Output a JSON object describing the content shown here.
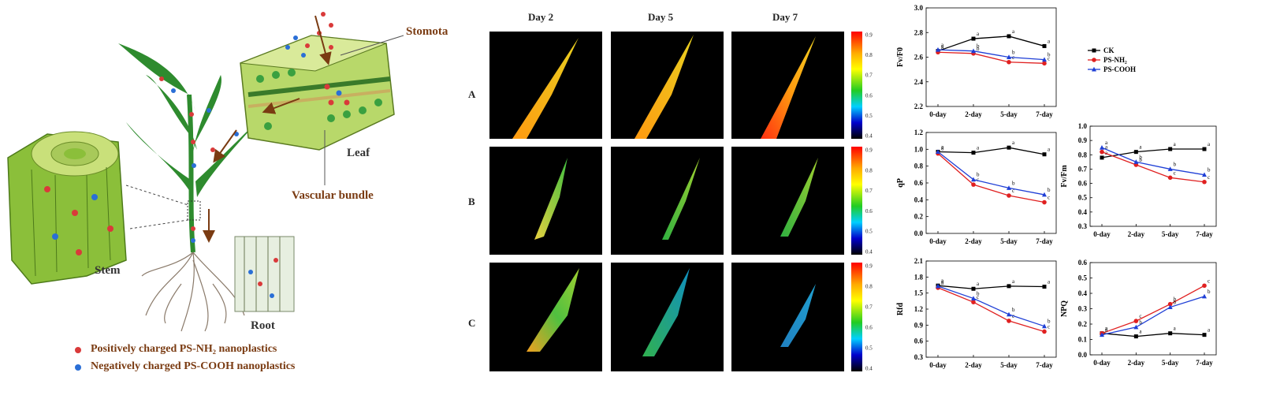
{
  "diagram": {
    "labels": {
      "stomata": "Stomota",
      "leaf": "Leaf",
      "vascular": "Vascular bundle",
      "stem": "Stem",
      "root": "Root"
    },
    "legend": [
      {
        "text": "Positively charged PS-NH₂ nanoplastics",
        "color": "#d93a3a"
      },
      {
        "text": "Negatively charged PS-COOH nanoplastics",
        "color": "#2a6fd6"
      }
    ]
  },
  "heatmaps": {
    "columns": [
      "Day 2",
      "Day 5",
      "Day 7"
    ],
    "rows": [
      "A",
      "B",
      "C"
    ],
    "colorbar_ticks": [
      "0.9",
      "0.8",
      "0.7",
      "0.6",
      "0.5",
      "0.4"
    ]
  },
  "chart_data": [
    {
      "type": "line",
      "ylabel": "Fv/F0",
      "categories": [
        "0-day",
        "2-day",
        "5-day",
        "7-day"
      ],
      "ylim": [
        2.2,
        3.0
      ],
      "yticks": [
        "2.2",
        "2.4",
        "2.6",
        "2.8",
        "3.0"
      ],
      "legend": "right",
      "series": [
        {
          "name": "CK",
          "color": "#000000",
          "marker": "square",
          "values": [
            2.65,
            2.75,
            2.77,
            2.69
          ],
          "letters": [
            "a",
            "a",
            "a",
            "a"
          ]
        },
        {
          "name": "PS-NH₂",
          "color": "#e02020",
          "marker": "circle",
          "values": [
            2.64,
            2.63,
            2.56,
            2.55
          ],
          "letters": [
            "a",
            "b",
            "c",
            "c"
          ]
        },
        {
          "name": "PS-COOH",
          "color": "#1f3fd6",
          "marker": "triangle",
          "values": [
            2.66,
            2.65,
            2.6,
            2.58
          ],
          "letters": [
            "a",
            "b",
            "b",
            "b"
          ]
        }
      ]
    },
    {
      "type": "line",
      "ylabel": "qP",
      "categories": [
        "0-day",
        "2-day",
        "5-day",
        "7-day"
      ],
      "ylim": [
        0.0,
        1.2
      ],
      "yticks": [
        "0.0",
        "0.2",
        "0.4",
        "0.6",
        "0.8",
        "1.0",
        "1.2"
      ],
      "series": [
        {
          "name": "CK",
          "color": "#000000",
          "marker": "square",
          "values": [
            0.97,
            0.96,
            1.02,
            0.94
          ],
          "letters": [
            "a",
            "a",
            "a",
            "a"
          ]
        },
        {
          "name": "PS-NH₂",
          "color": "#e02020",
          "marker": "circle",
          "values": [
            0.95,
            0.58,
            0.45,
            0.37
          ],
          "letters": [
            "a",
            "c",
            "c",
            "c"
          ]
        },
        {
          "name": "PS-COOH",
          "color": "#1f3fd6",
          "marker": "triangle",
          "values": [
            0.97,
            0.64,
            0.54,
            0.46
          ],
          "letters": [
            "a",
            "b",
            "b",
            "b"
          ]
        }
      ]
    },
    {
      "type": "line",
      "ylabel": "Fv/Fm",
      "categories": [
        "0-day",
        "2-day",
        "5-day",
        "7-day"
      ],
      "ylim": [
        0.3,
        1.0
      ],
      "yticks": [
        "0.3",
        "0.4",
        "0.5",
        "0.6",
        "0.7",
        "0.8",
        "0.9",
        "1.0"
      ],
      "series": [
        {
          "name": "CK",
          "color": "#000000",
          "marker": "square",
          "values": [
            0.78,
            0.82,
            0.84,
            0.84
          ],
          "letters": [
            "a",
            "a",
            "a",
            "a"
          ]
        },
        {
          "name": "PS-NH₂",
          "color": "#e02020",
          "marker": "circle",
          "values": [
            0.82,
            0.73,
            0.64,
            0.61
          ],
          "letters": [
            "a",
            "b",
            "c",
            "c"
          ]
        },
        {
          "name": "PS-COOH",
          "color": "#1f3fd6",
          "marker": "triangle",
          "values": [
            0.85,
            0.75,
            0.7,
            0.66
          ],
          "letters": [
            "a",
            "b",
            "b",
            "b"
          ]
        }
      ]
    },
    {
      "type": "line",
      "ylabel": "Rfd",
      "categories": [
        "0-day",
        "2-day",
        "5-day",
        "7-day"
      ],
      "ylim": [
        0.3,
        2.1
      ],
      "yticks": [
        "0.3",
        "0.6",
        "0.9",
        "1.2",
        "1.5",
        "1.8",
        "2.1"
      ],
      "series": [
        {
          "name": "CK",
          "color": "#000000",
          "marker": "square",
          "values": [
            1.64,
            1.58,
            1.63,
            1.62
          ],
          "letters": [
            "a",
            "a",
            "a",
            "a"
          ]
        },
        {
          "name": "PS-NH₂",
          "color": "#e02020",
          "marker": "circle",
          "values": [
            1.6,
            1.33,
            0.98,
            0.78
          ],
          "letters": [
            "a",
            "c",
            "c",
            "c"
          ]
        },
        {
          "name": "PS-COOH",
          "color": "#1f3fd6",
          "marker": "triangle",
          "values": [
            1.63,
            1.4,
            1.1,
            0.88
          ],
          "letters": [
            "a",
            "b",
            "b",
            "b"
          ]
        }
      ]
    },
    {
      "type": "line",
      "ylabel": "NPQ",
      "categories": [
        "0-day",
        "2-day",
        "5-day",
        "7-day"
      ],
      "ylim": [
        0.0,
        0.6
      ],
      "yticks": [
        "0.0",
        "0.1",
        "0.2",
        "0.3",
        "0.4",
        "0.5",
        "0.6"
      ],
      "series": [
        {
          "name": "CK",
          "color": "#000000",
          "marker": "square",
          "values": [
            0.14,
            0.12,
            0.14,
            0.13
          ],
          "letters": [
            "a",
            "a",
            "a",
            "a"
          ]
        },
        {
          "name": "PS-NH₂",
          "color": "#e02020",
          "marker": "circle",
          "values": [
            0.14,
            0.22,
            0.33,
            0.45
          ],
          "letters": [
            "a",
            "c",
            "b",
            "c"
          ]
        },
        {
          "name": "PS-COOH",
          "color": "#1f3fd6",
          "marker": "triangle",
          "values": [
            0.13,
            0.18,
            0.31,
            0.38
          ],
          "letters": [
            "a",
            "b",
            "b",
            "b"
          ]
        }
      ]
    }
  ]
}
